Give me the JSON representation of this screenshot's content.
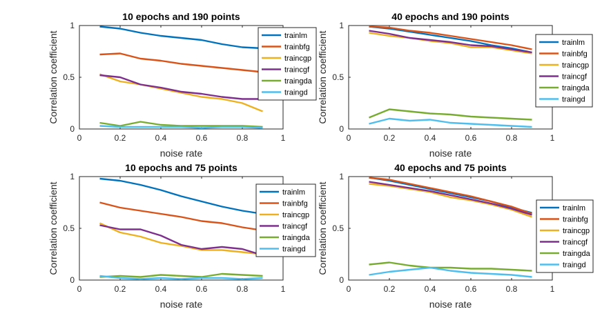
{
  "chart_data": [
    {
      "type": "line",
      "title": "10 epochs and 190 points",
      "xlabel": "noise rate",
      "ylabel": "Correlation coefficient",
      "xlim": [
        0,
        1
      ],
      "ylim": [
        0,
        1
      ],
      "xticks": [
        "0",
        "0.2",
        "0.4",
        "0.6",
        "0.8",
        "1"
      ],
      "yticks": [
        "0",
        "0.5",
        "1"
      ],
      "x": [
        0.1,
        0.2,
        0.3,
        0.4,
        0.5,
        0.6,
        0.7,
        0.8,
        0.9
      ],
      "legend_position": "top-right",
      "series": [
        {
          "name": "trainlm",
          "color": "#0072bd",
          "values": [
            0.99,
            0.97,
            0.93,
            0.9,
            0.88,
            0.86,
            0.82,
            0.79,
            0.78
          ]
        },
        {
          "name": "trainbfg",
          "color": "#d95319",
          "values": [
            0.72,
            0.73,
            0.68,
            0.66,
            0.63,
            0.61,
            0.59,
            0.57,
            0.55
          ]
        },
        {
          "name": "traincgp",
          "color": "#edb120",
          "values": [
            0.53,
            0.46,
            0.43,
            0.39,
            0.35,
            0.31,
            0.29,
            0.25,
            0.17
          ]
        },
        {
          "name": "traincgf",
          "color": "#7e2f8e",
          "values": [
            0.52,
            0.5,
            0.43,
            0.4,
            0.36,
            0.34,
            0.31,
            0.29,
            0.29
          ]
        },
        {
          "name": "traingda",
          "color": "#77ac30",
          "values": [
            0.06,
            0.03,
            0.07,
            0.04,
            0.03,
            0.03,
            0.03,
            0.03,
            0.02
          ]
        },
        {
          "name": "traingd",
          "color": "#4dbeee",
          "values": [
            0.03,
            0.02,
            0.02,
            0.02,
            0.02,
            0.01,
            0.02,
            0.02,
            0.01
          ]
        }
      ]
    },
    {
      "type": "line",
      "title": "40 epochs and 190 points",
      "xlabel": "noise rate",
      "ylabel": "Correlation coefficient",
      "xlim": [
        0,
        1
      ],
      "ylim": [
        0,
        1
      ],
      "xticks": [
        "0",
        "0.2",
        "0.4",
        "0.6",
        "0.8",
        "1"
      ],
      "yticks": [
        "0",
        "0.5",
        "1"
      ],
      "x": [
        0.1,
        0.2,
        0.3,
        0.4,
        0.5,
        0.6,
        0.7,
        0.8,
        0.9
      ],
      "legend_position": "top-right",
      "series": [
        {
          "name": "trainlm",
          "color": "#0072bd",
          "values": [
            0.99,
            0.97,
            0.94,
            0.91,
            0.88,
            0.85,
            0.81,
            0.78,
            0.74
          ]
        },
        {
          "name": "trainbfg",
          "color": "#d95319",
          "values": [
            0.99,
            0.98,
            0.95,
            0.93,
            0.9,
            0.87,
            0.84,
            0.81,
            0.77
          ]
        },
        {
          "name": "traincgp",
          "color": "#edb120",
          "values": [
            0.93,
            0.9,
            0.88,
            0.85,
            0.83,
            0.79,
            0.79,
            0.76,
            0.73
          ]
        },
        {
          "name": "traincgf",
          "color": "#7e2f8e",
          "values": [
            0.95,
            0.92,
            0.88,
            0.86,
            0.84,
            0.81,
            0.8,
            0.77,
            0.74
          ]
        },
        {
          "name": "traingda",
          "color": "#77ac30",
          "values": [
            0.11,
            0.19,
            0.17,
            0.15,
            0.14,
            0.12,
            0.11,
            0.1,
            0.09
          ]
        },
        {
          "name": "traingd",
          "color": "#4dbeee",
          "values": [
            0.05,
            0.1,
            0.08,
            0.09,
            0.06,
            0.05,
            0.04,
            0.03,
            0.02
          ]
        }
      ]
    },
    {
      "type": "line",
      "title": "10 epochs and 75 points",
      "xlabel": "noise rate",
      "ylabel": "Correlation coefficient",
      "xlim": [
        0,
        1
      ],
      "ylim": [
        0,
        1
      ],
      "xticks": [
        "0",
        "0.2",
        "0.4",
        "0.6",
        "0.8",
        "1"
      ],
      "yticks": [
        "0",
        "0.5",
        "1"
      ],
      "x": [
        0.1,
        0.2,
        0.3,
        0.4,
        0.5,
        0.6,
        0.7,
        0.8,
        0.9
      ],
      "legend_position": "top-right",
      "series": [
        {
          "name": "trainlm",
          "color": "#0072bd",
          "values": [
            0.98,
            0.96,
            0.92,
            0.87,
            0.81,
            0.76,
            0.71,
            0.67,
            0.64
          ]
        },
        {
          "name": "trainbfg",
          "color": "#d95319",
          "values": [
            0.75,
            0.7,
            0.67,
            0.64,
            0.61,
            0.57,
            0.55,
            0.51,
            0.48
          ]
        },
        {
          "name": "traincgp",
          "color": "#edb120",
          "values": [
            0.55,
            0.46,
            0.42,
            0.36,
            0.33,
            0.29,
            0.29,
            0.27,
            0.25
          ]
        },
        {
          "name": "traincgf",
          "color": "#7e2f8e",
          "values": [
            0.53,
            0.49,
            0.49,
            0.43,
            0.34,
            0.3,
            0.32,
            0.3,
            0.24
          ]
        },
        {
          "name": "traingda",
          "color": "#77ac30",
          "values": [
            0.03,
            0.04,
            0.03,
            0.05,
            0.04,
            0.03,
            0.06,
            0.05,
            0.04
          ]
        },
        {
          "name": "traingd",
          "color": "#4dbeee",
          "values": [
            0.04,
            0.02,
            0.01,
            0.02,
            0.01,
            0.02,
            0.02,
            0.01,
            0.02
          ]
        }
      ]
    },
    {
      "type": "line",
      "title": "40 epochs and 75 points",
      "xlabel": "noise rate",
      "ylabel": "Correlation coefficient",
      "xlim": [
        0,
        1
      ],
      "ylim": [
        0,
        1
      ],
      "xticks": [
        "0",
        "0.2",
        "0.4",
        "0.6",
        "0.8",
        "1"
      ],
      "yticks": [
        "0",
        "0.5",
        "1"
      ],
      "x": [
        0.1,
        0.2,
        0.3,
        0.4,
        0.5,
        0.6,
        0.7,
        0.8,
        0.9
      ],
      "legend_position": "right",
      "series": [
        {
          "name": "trainlm",
          "color": "#0072bd",
          "values": [
            0.99,
            0.96,
            0.92,
            0.88,
            0.84,
            0.8,
            0.76,
            0.7,
            0.65
          ]
        },
        {
          "name": "trainbfg",
          "color": "#d95319",
          "values": [
            0.99,
            0.97,
            0.93,
            0.89,
            0.85,
            0.81,
            0.76,
            0.71,
            0.64
          ]
        },
        {
          "name": "traincgp",
          "color": "#edb120",
          "values": [
            0.93,
            0.91,
            0.88,
            0.85,
            0.8,
            0.77,
            0.73,
            0.68,
            0.61
          ]
        },
        {
          "name": "traincgf",
          "color": "#7e2f8e",
          "values": [
            0.95,
            0.92,
            0.89,
            0.86,
            0.82,
            0.78,
            0.74,
            0.69,
            0.63
          ]
        },
        {
          "name": "traingda",
          "color": "#77ac30",
          "values": [
            0.15,
            0.17,
            0.14,
            0.12,
            0.12,
            0.11,
            0.11,
            0.1,
            0.09
          ]
        },
        {
          "name": "traingd",
          "color": "#4dbeee",
          "values": [
            0.05,
            0.08,
            0.1,
            0.12,
            0.09,
            0.07,
            0.06,
            0.05,
            0.03
          ]
        }
      ]
    }
  ]
}
